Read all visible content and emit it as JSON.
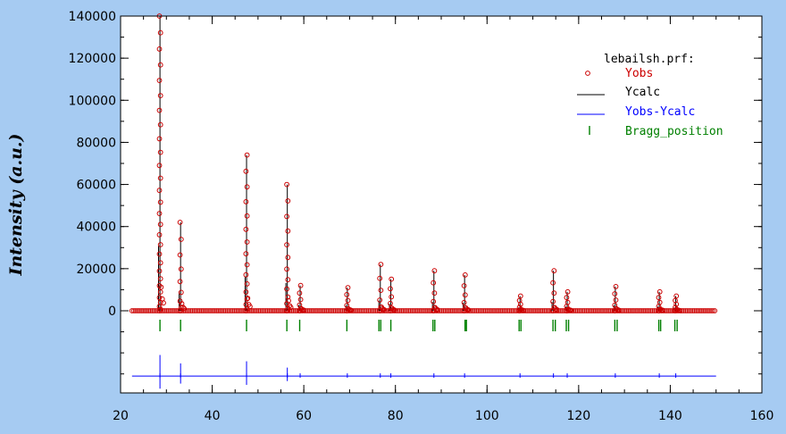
{
  "chart_data": {
    "type": "scatter",
    "title": "",
    "xlabel": "",
    "ylabel": "Intensity (a.u.)",
    "xlim": [
      20,
      160
    ],
    "ylim": [
      0,
      140000
    ],
    "x_ticks": [
      20,
      40,
      60,
      80,
      100,
      120,
      140,
      160
    ],
    "y_ticks": [
      0,
      20000,
      40000,
      60000,
      80000,
      100000,
      120000,
      140000
    ],
    "x_data_range": [
      22.5,
      150.0
    ],
    "legend": {
      "title": "lebailsh.prf:",
      "position": "top-right",
      "entries": [
        {
          "label": "Yobs",
          "color": "#cc0000",
          "marker": "circle"
        },
        {
          "label": "Ycalc",
          "color": "#000000",
          "marker": "line"
        },
        {
          "label": "Yobs-Ycalc",
          "color": "#0000ff",
          "marker": "line"
        },
        {
          "label": "Bragg_position",
          "color": "#008000",
          "marker": "bar"
        }
      ]
    },
    "peaks": [
      {
        "x": 28.6,
        "y": 140000
      },
      {
        "x": 33.1,
        "y": 42000
      },
      {
        "x": 47.5,
        "y": 74000
      },
      {
        "x": 56.4,
        "y": 60000
      },
      {
        "x": 59.2,
        "y": 12000
      },
      {
        "x": 69.5,
        "y": 11000
      },
      {
        "x": 76.7,
        "y": 22000
      },
      {
        "x": 79.0,
        "y": 15000
      },
      {
        "x": 88.4,
        "y": 19000
      },
      {
        "x": 95.1,
        "y": 17000
      },
      {
        "x": 107.2,
        "y": 7000
      },
      {
        "x": 114.5,
        "y": 19000
      },
      {
        "x": 117.5,
        "y": 9000
      },
      {
        "x": 128.0,
        "y": 11500
      },
      {
        "x": 137.6,
        "y": 9000
      },
      {
        "x": 141.2,
        "y": 7000
      }
    ],
    "bragg_positions": [
      28.6,
      33.1,
      47.5,
      56.3,
      59.1,
      69.4,
      76.4,
      76.8,
      79.0,
      88.2,
      88.6,
      95.2,
      95.5,
      107.0,
      107.4,
      114.4,
      114.9,
      117.3,
      117.8,
      127.9,
      128.4,
      137.5,
      137.9,
      141.0,
      141.5
    ],
    "difference_curve": {
      "baseline": -31000,
      "spikes": [
        {
          "x": 28.6,
          "amp": 10000
        },
        {
          "x": 33.1,
          "amp": 6000
        },
        {
          "x": 47.5,
          "amp": 7000
        },
        {
          "x": 56.4,
          "amp": 4000
        }
      ]
    }
  }
}
